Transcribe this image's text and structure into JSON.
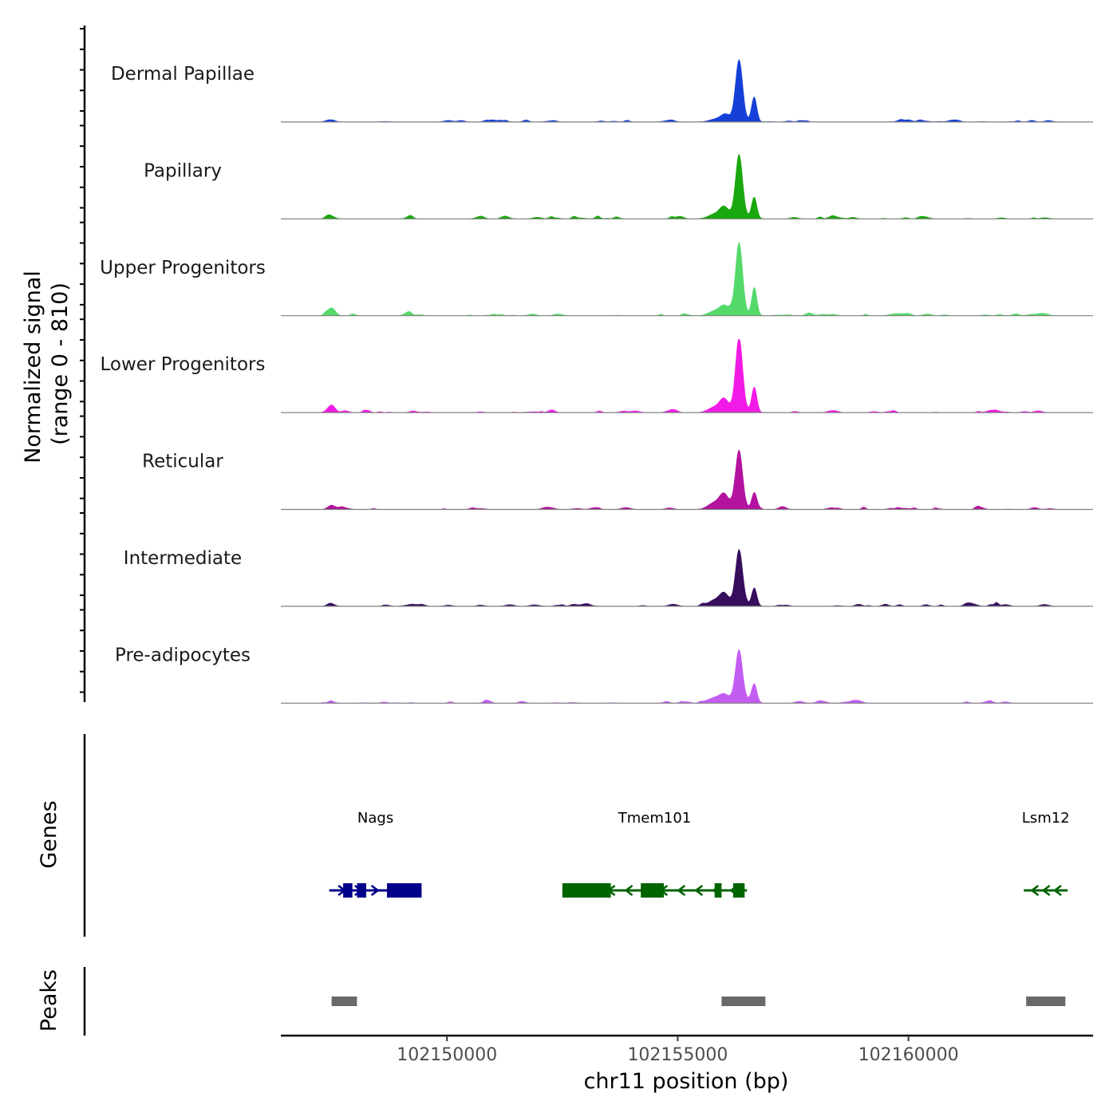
{
  "chart_data": {
    "type": "area",
    "title": "",
    "chromosome": "chr11",
    "xlabel": "chr11 position (bp)",
    "ylabel_line1": "Normalized signal",
    "ylabel_line2": "(range 0 - 810)",
    "y_range": [
      0,
      810
    ],
    "xlim": [
      102146400,
      102164000
    ],
    "x_ticks": [
      {
        "value": 102150000,
        "label": "102150000"
      },
      {
        "value": 102155000,
        "label": "102155000"
      },
      {
        "value": 102160000,
        "label": "102160000"
      }
    ],
    "main_peaks": [
      {
        "pos": 102156330,
        "width": 75
      },
      {
        "pos": 102156660,
        "width": 55
      },
      {
        "pos": 102156000,
        "width": 90
      },
      {
        "pos": 102155800,
        "width": 140
      },
      {
        "pos": 102147500,
        "width": 80
      }
    ],
    "series": [
      {
        "name": "Dermal Papillae",
        "color": "#1540d8",
        "peaks": [
          0.82,
          0.33,
          0.05,
          0.03,
          0.03
        ]
      },
      {
        "name": "Papillary",
        "color": "#1aa80f",
        "peaks": [
          0.85,
          0.26,
          0.12,
          0.06,
          0.03
        ]
      },
      {
        "name": "Upper Progenitors",
        "color": "#55d96a",
        "peaks": [
          0.97,
          0.39,
          0.09,
          0.06,
          0.11
        ]
      },
      {
        "name": "Lower Progenitors",
        "color": "#f21ae6",
        "peaks": [
          1.0,
          0.33,
          0.14,
          0.07,
          0.09
        ]
      },
      {
        "name": "Reticular",
        "color": "#b3139f",
        "peaks": [
          0.76,
          0.23,
          0.16,
          0.09,
          0.06
        ]
      },
      {
        "name": "Intermediate",
        "color": "#370d5e",
        "peaks": [
          0.74,
          0.25,
          0.13,
          0.08,
          0.03
        ]
      },
      {
        "name": "Pre-adipocytes",
        "color": "#c35df2",
        "peaks": [
          0.68,
          0.24,
          0.07,
          0.07,
          0.02
        ]
      }
    ],
    "genes_label": "Genes",
    "genes": [
      {
        "name": "Nags",
        "strand": "+",
        "color": "#00008b",
        "start": 102147450,
        "end": 102149450,
        "exons": [
          [
            102147750,
            102147950
          ],
          [
            102148050,
            102148250
          ],
          [
            102148700,
            102149450
          ]
        ]
      },
      {
        "name": "Tmem101",
        "strand": "-",
        "color": "#006400",
        "start": 102152500,
        "end": 102156500,
        "exons": [
          [
            102152500,
            102153550
          ],
          [
            102154200,
            102154700
          ],
          [
            102155800,
            102155950
          ],
          [
            102156200,
            102156450
          ]
        ]
      },
      {
        "name": "Lsm12",
        "strand": "-",
        "color": "#006400",
        "start": 102162500,
        "end": 102163450,
        "exons": []
      }
    ],
    "peaks_label": "Peaks",
    "peaks_color": "#696969",
    "peak_regions": [
      [
        102147500,
        102148050
      ],
      [
        102155950,
        102156900
      ],
      [
        102162550,
        102163400
      ]
    ]
  }
}
